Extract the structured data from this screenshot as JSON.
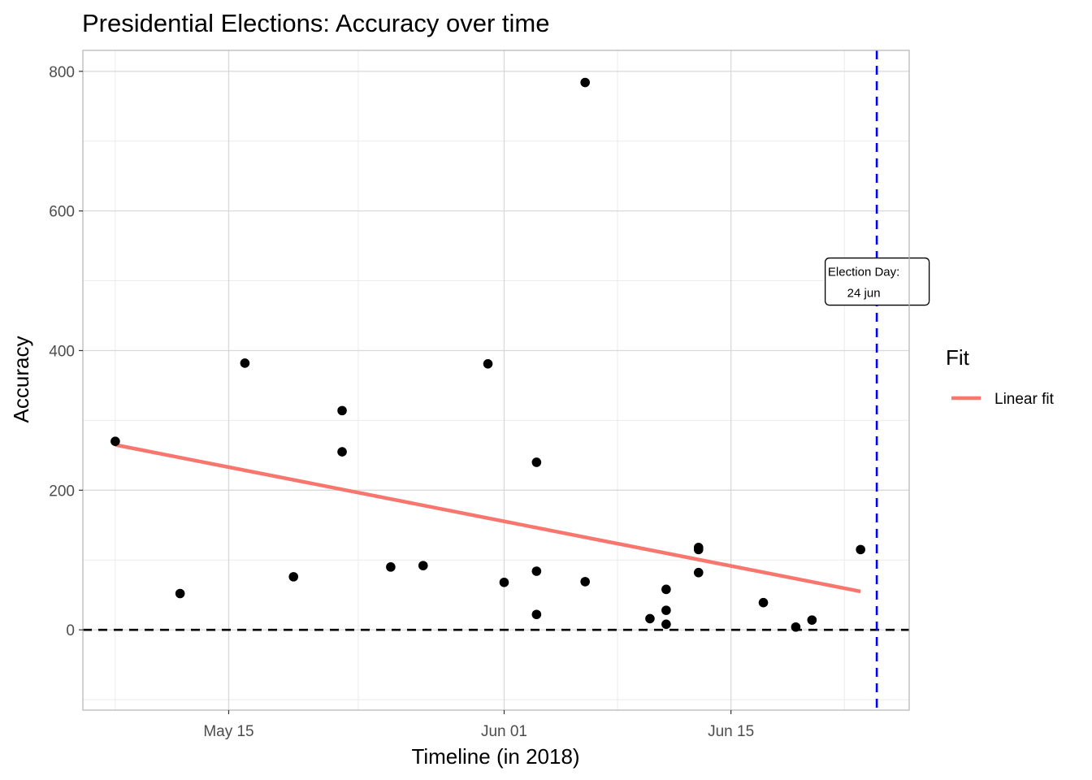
{
  "chart_data": {
    "type": "scatter",
    "title": "Presidential Elections: Accuracy over time",
    "xlabel": "Timeline (in 2018)",
    "ylabel": "Accuracy",
    "x_type": "date",
    "xlim": [
      "2018-05-06",
      "2018-06-26"
    ],
    "ylim": [
      -115,
      830
    ],
    "x_ticks": [
      {
        "date": "2018-05-15",
        "label": "May 15"
      },
      {
        "date": "2018-06-01",
        "label": "Jun 01"
      },
      {
        "date": "2018-06-15",
        "label": "Jun 15"
      }
    ],
    "x_minor_ticks": [
      "2018-05-08",
      "2018-05-23",
      "2018-06-08",
      "2018-06-22"
    ],
    "y_ticks": [
      0,
      200,
      400,
      600,
      800
    ],
    "y_minor_ticks": [
      -100,
      100,
      300,
      500,
      700
    ],
    "grid": true,
    "points": [
      {
        "x": "2018-05-08",
        "y": 270
      },
      {
        "x": "2018-05-12",
        "y": 52
      },
      {
        "x": "2018-05-16",
        "y": 382
      },
      {
        "x": "2018-05-19",
        "y": 76
      },
      {
        "x": "2018-05-22",
        "y": 314
      },
      {
        "x": "2018-05-22",
        "y": 255
      },
      {
        "x": "2018-05-25",
        "y": 90
      },
      {
        "x": "2018-05-27",
        "y": 92
      },
      {
        "x": "2018-05-31",
        "y": 381
      },
      {
        "x": "2018-06-01",
        "y": 68
      },
      {
        "x": "2018-06-03",
        "y": 240
      },
      {
        "x": "2018-06-03",
        "y": 84
      },
      {
        "x": "2018-06-03",
        "y": 22
      },
      {
        "x": "2018-06-06",
        "y": 784
      },
      {
        "x": "2018-06-06",
        "y": 69
      },
      {
        "x": "2018-06-10",
        "y": 16
      },
      {
        "x": "2018-06-11",
        "y": 58
      },
      {
        "x": "2018-06-11",
        "y": 28
      },
      {
        "x": "2018-06-11",
        "y": 8
      },
      {
        "x": "2018-06-13",
        "y": 118
      },
      {
        "x": "2018-06-13",
        "y": 115
      },
      {
        "x": "2018-06-13",
        "y": 82
      },
      {
        "x": "2018-06-17",
        "y": 39
      },
      {
        "x": "2018-06-19",
        "y": 4
      },
      {
        "x": "2018-06-20",
        "y": 14
      },
      {
        "x": "2018-06-23",
        "y": 115
      }
    ],
    "fit_line": {
      "name": "Linear fit",
      "color": "#F8766D",
      "x": [
        "2018-05-08",
        "2018-06-23"
      ],
      "y": [
        265,
        55
      ]
    },
    "reference_lines": [
      {
        "orientation": "horizontal",
        "y": 0,
        "color": "#000000",
        "style": "dashed"
      },
      {
        "orientation": "vertical",
        "x": "2018-06-24",
        "color": "#0000FF",
        "style": "dashed"
      }
    ],
    "annotation": {
      "line1": "Election Day:",
      "line2": "24 jun",
      "x": "2018-06-24",
      "y": 500
    },
    "legend": {
      "title": "Fit",
      "placement": "right",
      "entries": [
        {
          "label": "Linear fit",
          "color": "#F8766D"
        }
      ]
    },
    "point_color": "#000000"
  }
}
